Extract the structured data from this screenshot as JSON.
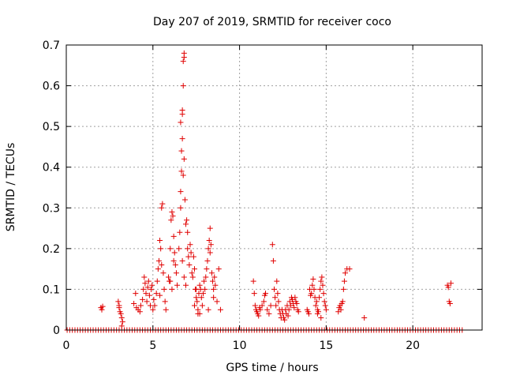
{
  "colors": {
    "series": "#e00000",
    "grid": "#a0a0a0",
    "axis": "#000000",
    "background": "#ffffff"
  },
  "chart_data": {
    "type": "scatter",
    "title": "Day 207 of 2019, SRMTID for receiver coco",
    "xlabel": "GPS time / hours",
    "ylabel": "SRMTID / TECUs",
    "xlim": [
      0,
      24
    ],
    "ylim": [
      0,
      0.7
    ],
    "xticks": [
      0,
      5,
      10,
      15,
      20
    ],
    "xtick_labels": [
      "0",
      "5",
      "10",
      "15",
      "20"
    ],
    "yticks": [
      0,
      0.1,
      0.2,
      0.3,
      0.4,
      0.5,
      0.6,
      0.7
    ],
    "ytick_labels": [
      "0",
      "0.1",
      "0.2",
      "0.3",
      "0.4",
      "0.5",
      "0.6",
      "0.7"
    ],
    "grid": true,
    "marker": "+",
    "series": [
      {
        "name": "SRMTID",
        "baseline": {
          "y": 0,
          "x_start": 0.05,
          "x_end": 22.9,
          "step": 0.15
        },
        "points": [
          [
            2.0,
            0.055
          ],
          [
            2.05,
            0.05
          ],
          [
            2.1,
            0.058
          ],
          [
            3.0,
            0.07
          ],
          [
            3.05,
            0.055
          ],
          [
            3.1,
            0.045
          ],
          [
            3.15,
            0.04
          ],
          [
            3.2,
            0.03
          ],
          [
            3.25,
            0.02
          ],
          [
            3.05,
            0.06
          ],
          [
            3.2,
            0.01
          ],
          [
            3.9,
            0.065
          ],
          [
            4.0,
            0.09
          ],
          [
            4.05,
            0.055
          ],
          [
            4.15,
            0.05
          ],
          [
            4.25,
            0.045
          ],
          [
            4.3,
            0.06
          ],
          [
            4.4,
            0.075
          ],
          [
            4.45,
            0.1
          ],
          [
            4.5,
            0.13
          ],
          [
            4.55,
            0.115
          ],
          [
            4.6,
            0.09
          ],
          [
            4.65,
            0.07
          ],
          [
            4.7,
            0.105
          ],
          [
            4.75,
            0.12
          ],
          [
            4.8,
            0.085
          ],
          [
            4.85,
            0.06
          ],
          [
            4.9,
            0.1
          ],
          [
            4.95,
            0.11
          ],
          [
            5.0,
            0.05
          ],
          [
            5.05,
            0.075
          ],
          [
            5.1,
            0.06
          ],
          [
            5.2,
            0.09
          ],
          [
            5.25,
            0.12
          ],
          [
            5.3,
            0.15
          ],
          [
            5.35,
            0.17
          ],
          [
            5.4,
            0.22
          ],
          [
            5.45,
            0.2
          ],
          [
            5.5,
            0.16
          ],
          [
            5.5,
            0.3
          ],
          [
            5.55,
            0.31
          ],
          [
            5.6,
            0.14
          ],
          [
            5.65,
            0.1
          ],
          [
            5.7,
            0.07
          ],
          [
            5.75,
            0.05
          ],
          [
            5.4,
            0.085
          ],
          [
            5.9,
            0.13
          ],
          [
            5.95,
            0.12
          ],
          [
            6.0,
            0.2
          ],
          [
            6.05,
            0.27
          ],
          [
            6.1,
            0.29
          ],
          [
            6.15,
            0.28
          ],
          [
            6.2,
            0.23
          ],
          [
            6.25,
            0.19
          ],
          [
            6.3,
            0.16
          ],
          [
            6.35,
            0.14
          ],
          [
            6.4,
            0.11
          ],
          [
            6.1,
            0.1
          ],
          [
            6.0,
            0.12
          ],
          [
            6.2,
            0.17
          ],
          [
            6.5,
            0.2
          ],
          [
            6.55,
            0.24
          ],
          [
            6.6,
            0.3
          ],
          [
            6.6,
            0.34
          ],
          [
            6.65,
            0.39
          ],
          [
            6.65,
            0.44
          ],
          [
            6.6,
            0.51
          ],
          [
            6.7,
            0.47
          ],
          [
            6.7,
            0.54
          ],
          [
            6.75,
            0.6
          ],
          [
            6.75,
            0.66
          ],
          [
            6.8,
            0.68
          ],
          [
            6.8,
            0.67
          ],
          [
            6.7,
            0.53
          ],
          [
            6.75,
            0.38
          ],
          [
            6.8,
            0.42
          ],
          [
            6.85,
            0.32
          ],
          [
            6.9,
            0.26
          ],
          [
            6.95,
            0.27
          ],
          [
            7.0,
            0.24
          ],
          [
            7.0,
            0.2
          ],
          [
            6.7,
            0.17
          ],
          [
            6.8,
            0.13
          ],
          [
            6.9,
            0.11
          ],
          [
            7.05,
            0.18
          ],
          [
            7.1,
            0.16
          ],
          [
            7.15,
            0.21
          ],
          [
            7.2,
            0.19
          ],
          [
            7.25,
            0.14
          ],
          [
            7.3,
            0.13
          ],
          [
            7.35,
            0.18
          ],
          [
            7.4,
            0.15
          ],
          [
            7.45,
            0.1
          ],
          [
            7.5,
            0.08
          ],
          [
            7.4,
            0.06
          ],
          [
            7.55,
            0.07
          ],
          [
            7.6,
            0.05
          ],
          [
            7.65,
            0.09
          ],
          [
            7.7,
            0.11
          ],
          [
            7.75,
            0.1
          ],
          [
            7.8,
            0.08
          ],
          [
            7.85,
            0.06
          ],
          [
            7.6,
            0.04
          ],
          [
            7.7,
            0.04
          ],
          [
            7.9,
            0.09
          ],
          [
            7.95,
            0.12
          ],
          [
            8.0,
            0.1
          ],
          [
            8.05,
            0.13
          ],
          [
            8.1,
            0.15
          ],
          [
            8.15,
            0.17
          ],
          [
            8.2,
            0.2
          ],
          [
            8.25,
            0.22
          ],
          [
            8.3,
            0.25
          ],
          [
            8.35,
            0.21
          ],
          [
            8.3,
            0.19
          ],
          [
            8.4,
            0.14
          ],
          [
            8.45,
            0.12
          ],
          [
            8.5,
            0.1
          ],
          [
            8.55,
            0.13
          ],
          [
            8.6,
            0.11
          ],
          [
            8.5,
            0.08
          ],
          [
            8.7,
            0.07
          ],
          [
            8.8,
            0.15
          ],
          [
            8.9,
            0.05
          ],
          [
            8.2,
            0.05
          ],
          [
            7.5,
            0.1
          ],
          [
            10.8,
            0.12
          ],
          [
            10.85,
            0.09
          ],
          [
            10.9,
            0.06
          ],
          [
            10.95,
            0.05
          ],
          [
            11.0,
            0.045
          ],
          [
            11.05,
            0.04
          ],
          [
            11.1,
            0.035
          ],
          [
            11.15,
            0.055
          ],
          [
            11.2,
            0.05
          ],
          [
            11.3,
            0.06
          ],
          [
            11.4,
            0.07
          ],
          [
            11.45,
            0.085
          ],
          [
            11.5,
            0.09
          ],
          [
            11.6,
            0.05
          ],
          [
            11.7,
            0.04
          ],
          [
            11.8,
            0.06
          ],
          [
            11.9,
            0.21
          ],
          [
            11.95,
            0.17
          ],
          [
            12.0,
            0.1
          ],
          [
            12.05,
            0.08
          ],
          [
            12.1,
            0.06
          ],
          [
            12.15,
            0.12
          ],
          [
            12.2,
            0.09
          ],
          [
            12.25,
            0.07
          ],
          [
            12.3,
            0.05
          ],
          [
            12.35,
            0.04
          ],
          [
            12.4,
            0.03
          ],
          [
            12.45,
            0.05
          ],
          [
            12.5,
            0.04
          ],
          [
            12.55,
            0.03
          ],
          [
            12.6,
            0.025
          ],
          [
            12.65,
            0.05
          ],
          [
            12.7,
            0.04
          ],
          [
            12.75,
            0.06
          ],
          [
            12.8,
            0.035
          ],
          [
            12.85,
            0.05
          ],
          [
            12.9,
            0.07
          ],
          [
            12.95,
            0.06
          ],
          [
            13.0,
            0.08
          ],
          [
            13.05,
            0.075
          ],
          [
            13.1,
            0.065
          ],
          [
            13.15,
            0.055
          ],
          [
            13.2,
            0.08
          ],
          [
            13.25,
            0.07
          ],
          [
            13.3,
            0.065
          ],
          [
            13.35,
            0.05
          ],
          [
            13.4,
            0.045
          ],
          [
            13.9,
            0.05
          ],
          [
            13.95,
            0.045
          ],
          [
            14.0,
            0.04
          ],
          [
            14.05,
            0.1
          ],
          [
            14.1,
            0.085
          ],
          [
            14.15,
            0.09
          ],
          [
            14.2,
            0.11
          ],
          [
            14.25,
            0.125
          ],
          [
            14.3,
            0.1
          ],
          [
            14.35,
            0.08
          ],
          [
            14.4,
            0.06
          ],
          [
            14.45,
            0.07
          ],
          [
            14.5,
            0.05
          ],
          [
            14.55,
            0.045
          ],
          [
            14.6,
            0.08
          ],
          [
            14.65,
            0.1
          ],
          [
            14.7,
            0.12
          ],
          [
            14.75,
            0.13
          ],
          [
            14.8,
            0.11
          ],
          [
            14.85,
            0.09
          ],
          [
            14.9,
            0.07
          ],
          [
            14.95,
            0.06
          ],
          [
            15.0,
            0.05
          ],
          [
            14.5,
            0.04
          ],
          [
            14.7,
            0.03
          ],
          [
            15.7,
            0.045
          ],
          [
            15.75,
            0.055
          ],
          [
            15.8,
            0.06
          ],
          [
            15.85,
            0.05
          ],
          [
            15.9,
            0.065
          ],
          [
            15.95,
            0.07
          ],
          [
            16.0,
            0.1
          ],
          [
            16.05,
            0.12
          ],
          [
            16.1,
            0.14
          ],
          [
            16.2,
            0.15
          ],
          [
            16.35,
            0.15
          ],
          [
            17.2,
            0.03
          ],
          [
            22.0,
            0.11
          ],
          [
            22.05,
            0.105
          ],
          [
            22.1,
            0.07
          ],
          [
            22.15,
            0.065
          ],
          [
            22.2,
            0.115
          ]
        ]
      }
    ]
  }
}
